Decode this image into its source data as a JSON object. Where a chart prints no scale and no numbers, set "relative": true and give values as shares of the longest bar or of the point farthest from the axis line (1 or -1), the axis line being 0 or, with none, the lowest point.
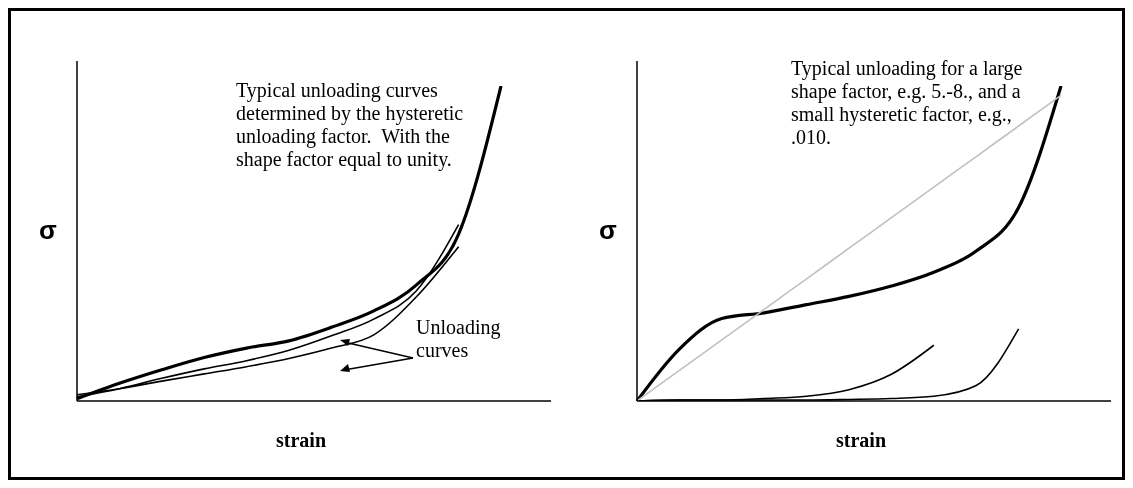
{
  "chart_data": [
    {
      "type": "line",
      "relative": true,
      "xlabel": "strain",
      "ylabel": "σ",
      "marker": "none",
      "line_style": "solid",
      "categories": [
        null,
        null,
        null,
        null,
        null,
        null,
        null,
        null,
        null,
        null,
        null
      ],
      "series": [
        {
          "color": "#000000",
          "values": [
            0.007,
            0.056,
            0.099,
            0.138,
            0.168,
            0.191,
            0.234,
            0.286,
            0.368,
            0.53,
            1.0
          ]
        },
        {
          "color": "#000000",
          "values": [
            0.013,
            0.039,
            0.072,
            0.102,
            0.128,
            0.161,
            0.207,
            0.26,
            0.349,
            0.56,
            null
          ]
        },
        {
          "color": "#000000",
          "values": [
            0.02,
            0.039,
            0.063,
            0.086,
            0.109,
            0.135,
            0.168,
            0.21,
            0.33,
            0.49,
            null
          ]
        }
      ],
      "annotations": [
        "Typical unloading curves  determined by the hysteretic unloading factor.  With the shape factor equal to unity.",
        "Unloading curves"
      ]
    },
    {
      "type": "line",
      "relative": true,
      "xlabel": "strain",
      "ylabel": "σ",
      "marker": "none",
      "line_style": "solid",
      "categories": [
        null,
        null,
        null,
        null,
        null,
        null,
        null,
        null,
        null,
        null,
        null
      ],
      "series": [
        {
          "color": "#000000",
          "values": [
            0,
            0.165,
            0.262,
            0.28,
            0.306,
            0.332,
            0.365,
            0.409,
            0.476,
            0.614,
            1.0
          ]
        },
        {
          "color": "#000000",
          "values": [
            0,
            0.003,
            0.003,
            0.008,
            0.015,
            0.036,
            0.085,
            0.177,
            null,
            null,
            null
          ]
        },
        {
          "color": "#000000",
          "values": [
            0,
            0.003,
            0.003,
            0.003,
            0.003,
            0.005,
            0.008,
            0.015,
            0.049,
            0.229,
            null
          ]
        },
        {
          "color": "#c0c0c0",
          "values": [
            0,
            0.097,
            0.194,
            0.291,
            0.388,
            0.485,
            0.582,
            0.679,
            0.776,
            0.873,
            0.97
          ]
        }
      ],
      "annotations": [
        "Typical unloading for a large shape factor, e.g. 5.-8., and a small hysteretic factor, e.g., .010."
      ]
    }
  ]
}
